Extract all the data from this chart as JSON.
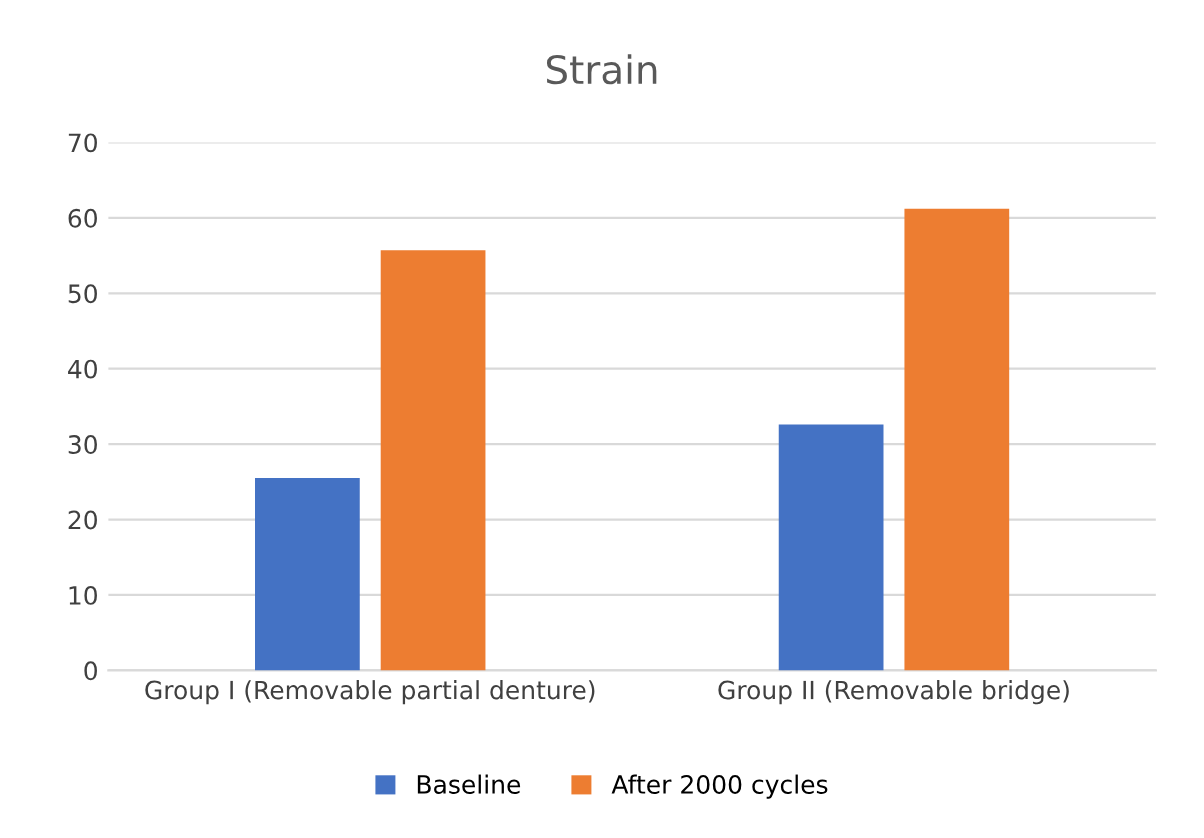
{
  "chart_data": {
    "type": "bar",
    "title": "Strain",
    "categories": [
      "Group I (Removable partial denture)",
      "Group II (Removable bridge)"
    ],
    "series": [
      {
        "name": "Baseline",
        "color": "#4472c4",
        "values": [
          25.5,
          32.6
        ]
      },
      {
        "name": "After 2000 cycles",
        "color": "#ed7d31",
        "values": [
          55.7,
          61.2
        ]
      }
    ],
    "ylim": [
      0,
      70
    ],
    "yticks": [
      0,
      10,
      20,
      30,
      40,
      50,
      60,
      70
    ],
    "grid": "y",
    "legend": "bottom"
  }
}
